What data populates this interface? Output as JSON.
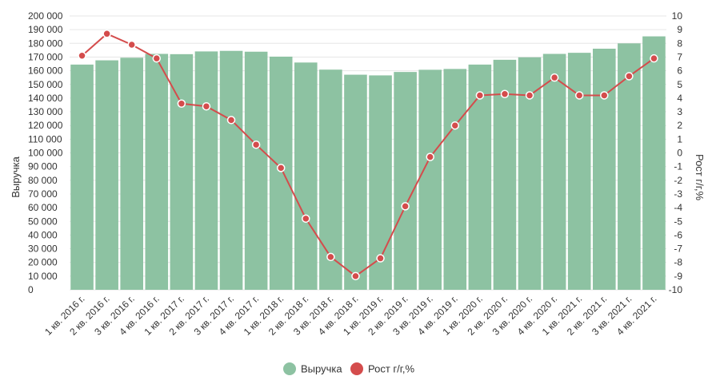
{
  "chart_data": {
    "type": "bar",
    "categories": [
      "1 кв. 2016 г.",
      "2 кв. 2016 г.",
      "3 кв. 2016 г.",
      "4 кв. 2016 г.",
      "1 кв. 2017 г.",
      "2 кв. 2017 г.",
      "3 кв. 2017 г.",
      "4 кв. 2017 г.",
      "1 кв. 2018 г.",
      "2 кв. 2018 г.",
      "3 кв. 2018 г.",
      "4 кв. 2018 г.",
      "1 кв. 2019 г.",
      "2 кв. 2019 г.",
      "3 кв. 2019 г.",
      "4 кв. 2019 г.",
      "1 кв. 2020 г.",
      "2 кв. 2020 г.",
      "3 кв. 2020 г.",
      "4 кв. 2020 г.",
      "1 кв. 2021 г.",
      "2 кв. 2021 г.",
      "3 кв. 2021 г.",
      "4 кв. 2021 г."
    ],
    "series": [
      {
        "name": "Выручка",
        "type": "bar",
        "axis": "left",
        "color": "#8dc2a2",
        "values": [
          164500,
          167600,
          169500,
          172300,
          172100,
          174100,
          174500,
          173900,
          170300,
          166000,
          160800,
          157100,
          156600,
          159100,
          160700,
          161300,
          164500,
          168000,
          169800,
          172300,
          173100,
          176100,
          180000,
          185100
        ]
      },
      {
        "name": "Рост г/г,%",
        "type": "line",
        "axis": "right",
        "color": "#d44c4c",
        "values": [
          7.1,
          8.7,
          7.9,
          6.9,
          3.6,
          3.4,
          2.4,
          0.6,
          -1.1,
          -4.8,
          -7.6,
          -9.0,
          -7.7,
          -3.9,
          -0.3,
          2.0,
          4.2,
          4.3,
          4.2,
          5.5,
          4.2,
          4.2,
          5.6,
          6.9
        ]
      }
    ],
    "ylabel": "Выручка",
    "y2label": "Рост г/г,%",
    "ylim": [
      0,
      200000
    ],
    "y2lim": [
      -10,
      10
    ],
    "yticks": [
      0,
      10000,
      20000,
      30000,
      40000,
      50000,
      60000,
      70000,
      80000,
      90000,
      100000,
      110000,
      120000,
      130000,
      140000,
      150000,
      160000,
      170000,
      180000,
      190000,
      200000
    ],
    "y2ticks": [
      -10,
      -9,
      -8,
      -7,
      -6,
      -5,
      -4,
      -3,
      -2,
      -1,
      0,
      1,
      2,
      3,
      4,
      5,
      6,
      7,
      8,
      9,
      10
    ],
    "grid": true,
    "legend_position": "bottom-center"
  }
}
